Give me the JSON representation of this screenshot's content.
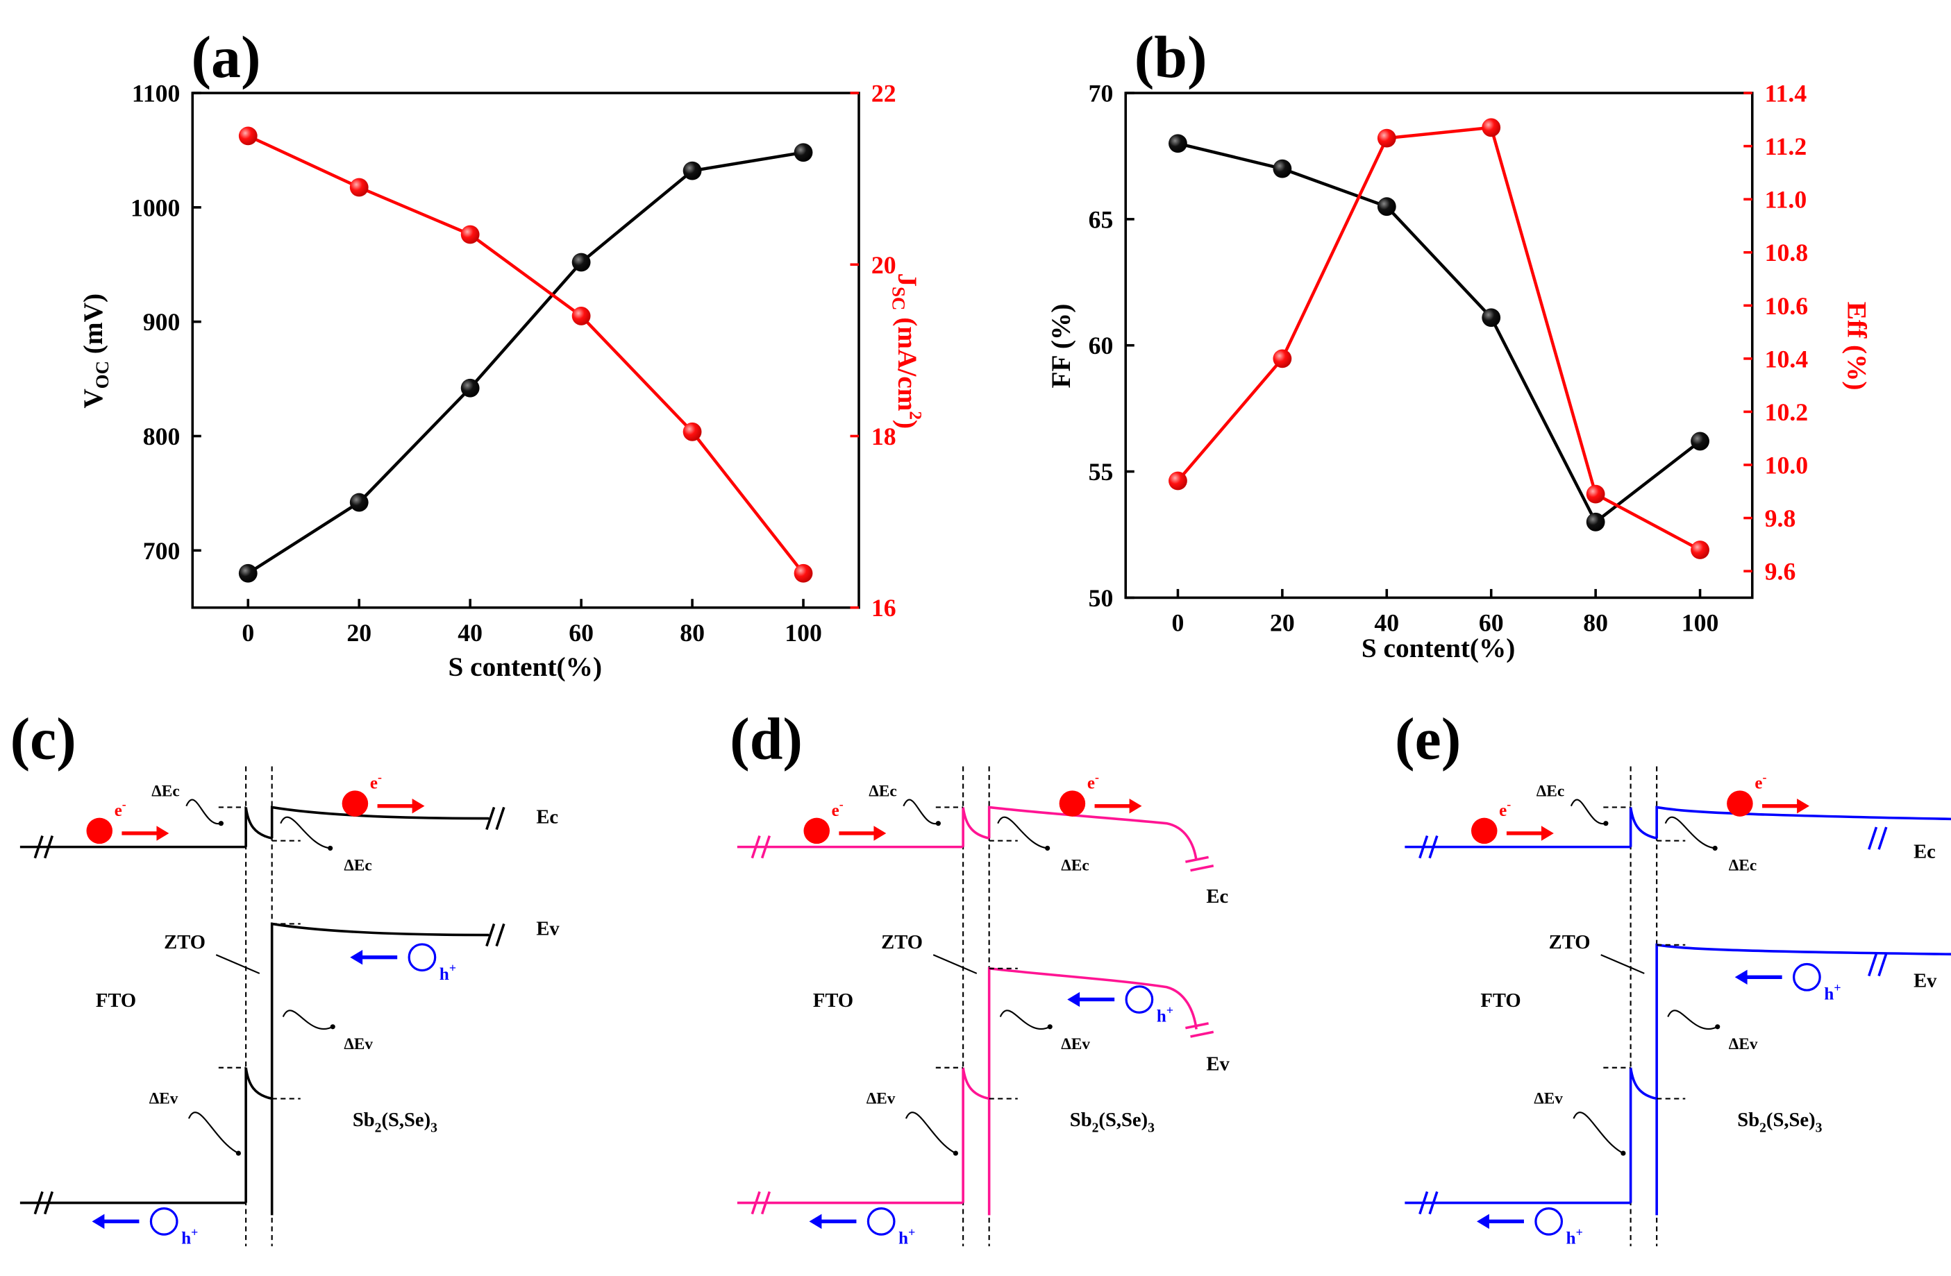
{
  "panels": {
    "a": {
      "tag": "(a)"
    },
    "b": {
      "tag": "(b)"
    },
    "c": {
      "tag": "(c)"
    },
    "d": {
      "tag": "(d)"
    },
    "e": {
      "tag": "(e)"
    }
  },
  "chart_data": [
    {
      "id": "a",
      "type": "line",
      "x": [
        0,
        20,
        40,
        60,
        80,
        100
      ],
      "xlabel": "S content(%)",
      "xlim": [
        -10,
        110
      ],
      "xticks": [
        "0",
        "20",
        "40",
        "60",
        "80",
        "100"
      ],
      "grid": false,
      "series": [
        {
          "name": "V_OC",
          "axis": "left",
          "color": "#000000",
          "values": [
            680,
            742,
            842,
            952,
            1032,
            1048
          ]
        },
        {
          "name": "J_SC",
          "axis": "right",
          "color": "#ff0000",
          "values": [
            21.5,
            20.9,
            20.35,
            19.4,
            18.05,
            16.4
          ]
        }
      ],
      "ylabel_left": {
        "main": "V",
        "sub": "OC",
        "rest": " (mV)"
      },
      "ylabel_right": {
        "main": "J",
        "sub": "SC",
        "rest": " (mA/cm",
        "sup": "2",
        "close": ")"
      },
      "ylim_left": [
        650,
        1100
      ],
      "yticks_left": [
        "700",
        "800",
        "900",
        "1000",
        "1100"
      ],
      "ylim_right": [
        16,
        22
      ],
      "yticks_right": [
        "16",
        "18",
        "20",
        "22"
      ]
    },
    {
      "id": "b",
      "type": "line",
      "x": [
        0,
        20,
        40,
        60,
        80,
        100
      ],
      "xlabel": "S content(%)",
      "xlim": [
        -10,
        110
      ],
      "xticks": [
        "0",
        "20",
        "40",
        "60",
        "80",
        "100"
      ],
      "grid": false,
      "series": [
        {
          "name": "FF",
          "axis": "left",
          "color": "#000000",
          "values": [
            68.0,
            67.0,
            65.5,
            61.1,
            53.0,
            56.2
          ]
        },
        {
          "name": "Eff",
          "axis": "right",
          "color": "#ff0000",
          "values": [
            9.94,
            10.4,
            11.23,
            11.27,
            9.89,
            9.68
          ]
        }
      ],
      "ylabel_left": "FF (%)",
      "ylabel_right": "Eff (%)",
      "ylim_left": [
        50,
        70
      ],
      "yticks_left": [
        "50",
        "55",
        "60",
        "65",
        "70"
      ],
      "ylim_right": [
        9.5,
        11.4
      ],
      "yticks_right": [
        "9.6",
        "9.8",
        "10.0",
        "10.2",
        "10.4",
        "10.6",
        "10.8",
        "11.0",
        "11.2",
        "11.4"
      ]
    }
  ],
  "diagrams": {
    "labels": {
      "fto": "FTO",
      "zto": "ZTO",
      "dec": "ΔEc",
      "dev": "ΔEv",
      "ec": "Ec",
      "ev": "Ev",
      "electron": "e",
      "electron_sup": "-",
      "hole": "h",
      "hole_sup": "+",
      "absorber_main": "Sb",
      "absorber_sub1": "2",
      "absorber_mid": "(S,Se)",
      "absorber_sub2": "3"
    },
    "colors": {
      "c": "#000000",
      "d": "#ff1493",
      "e": "#0000ff",
      "electron": "#ff0000",
      "hole": "#0000ff"
    }
  }
}
